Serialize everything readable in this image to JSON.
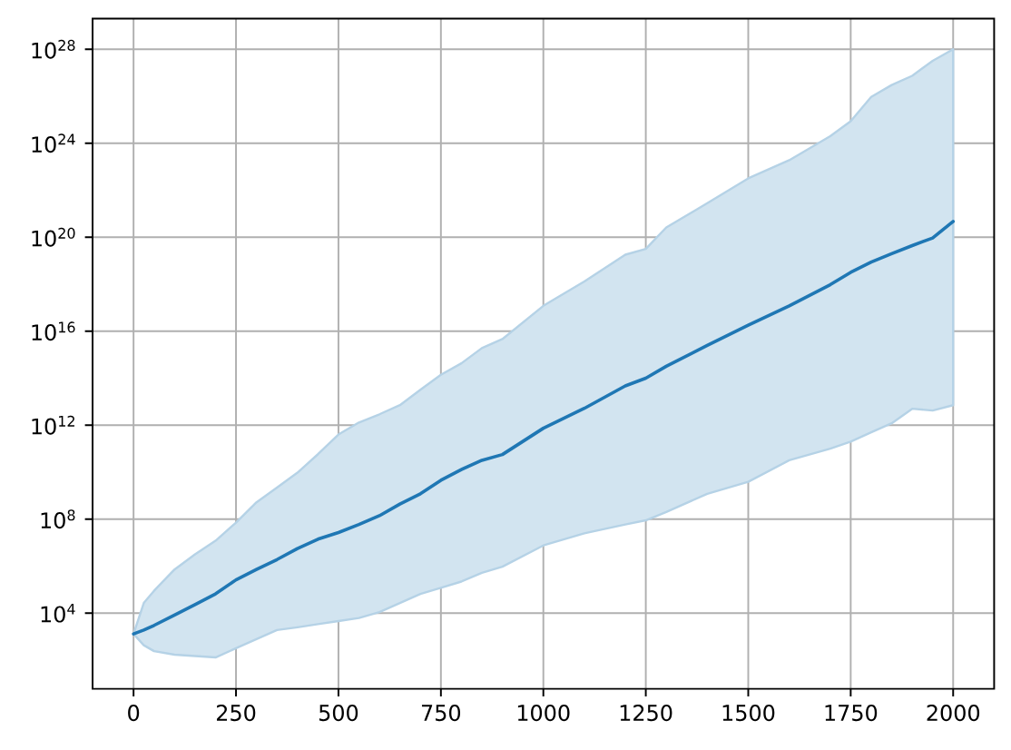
{
  "chart_data": {
    "type": "line",
    "x": [
      0,
      25,
      50,
      100,
      150,
      200,
      250,
      300,
      350,
      400,
      450,
      500,
      550,
      600,
      650,
      700,
      750,
      800,
      850,
      900,
      1000,
      1100,
      1200,
      1250,
      1300,
      1400,
      1500,
      1600,
      1700,
      1750,
      1800,
      1850,
      1900,
      1950,
      2000
    ],
    "series": [
      {
        "color": "#1f77b4",
        "values": [
          1300.0,
          1900.0,
          3000.0,
          8300.0,
          23000.0,
          66000.0,
          260000.0,
          720000.0,
          1900000.0,
          5600000.0,
          14000000.0,
          27000000.0,
          59000000.0,
          140000000.0,
          440000000.0,
          1200000000.0,
          4500000000.0,
          13000000000.0,
          32000000000.0,
          56000000000.0,
          740000000000.0,
          5200000000000.0,
          47000000000000.0,
          100000000000000.0,
          320000000000000.0,
          2500000000000000.0,
          1.8e+16,
          1.2e+17,
          9.5e+17,
          3.2e+18,
          8.7e+18,
          2e+19,
          4.4e+19,
          9.3e+19,
          4.7e+20
        ],
        "lower": [
          1300.0,
          430,
          240,
          170,
          150,
          130,
          320,
          780,
          1900.0,
          2500.0,
          3400.0,
          4600.0,
          6200.0,
          11000.0,
          27000.0,
          66000.0,
          120000.0,
          220000.0,
          520000.0,
          950000.0,
          7600000.0,
          25000000.0,
          59000000.0,
          89000000.0,
          200000000.0,
          1200000000.0,
          3900000000.0,
          32000000000.0,
          100000000000.0,
          200000000000.0,
          500000000000.0,
          1200000000000.0,
          5000000000000.0,
          4200000000000.0,
          7100000000000.0
        ],
        "upper": [
          1300.0,
          27000.0,
          89000.0,
          720000.0,
          3200000.0,
          12000000.0,
          71000000.0,
          520000000.0,
          2200000000.0,
          9500000000.0,
          58000000000.0,
          400000000000.0,
          1300000000000.0,
          2900000000000.0,
          7100000000000.0,
          32000000000000.0,
          140000000000000.0,
          430000000000000.0,
          1900000000000000.0,
          4600000000000000.0,
          1.2e+17,
          1.3e+18,
          1.8e+19,
          3.2e+19,
          2.6e+20,
          2.8e+21,
          3.2e+22,
          1.9e+23,
          2e+24,
          8.7e+24,
          9.3e+25,
          3e+26,
          7.4e+26,
          3.2e+27,
          1e+28
        ]
      }
    ],
    "xlim": [
      -100,
      2100
    ],
    "ylim": [
      6,
      2e+29
    ],
    "xticks": [
      0,
      250,
      500,
      750,
      1000,
      1250,
      1500,
      1750,
      2000
    ],
    "yticks": [
      {
        "value": 10000.0,
        "label": "10$^{4}$"
      },
      {
        "value": 100000000.0,
        "label": "10$^{8}$"
      },
      {
        "value": 1000000000000.0,
        "label": "10$^{12}$"
      },
      {
        "value": 1e+16,
        "label": "10$^{16}$"
      },
      {
        "value": 1e+20,
        "label": "10$^{20}$"
      },
      {
        "value": 1e+24,
        "label": "10$^{24}$"
      },
      {
        "value": 1e+28,
        "label": "10$^{28}$"
      }
    ],
    "log": "y",
    "grid": true,
    "marker": "none",
    "line_style": "solid"
  }
}
